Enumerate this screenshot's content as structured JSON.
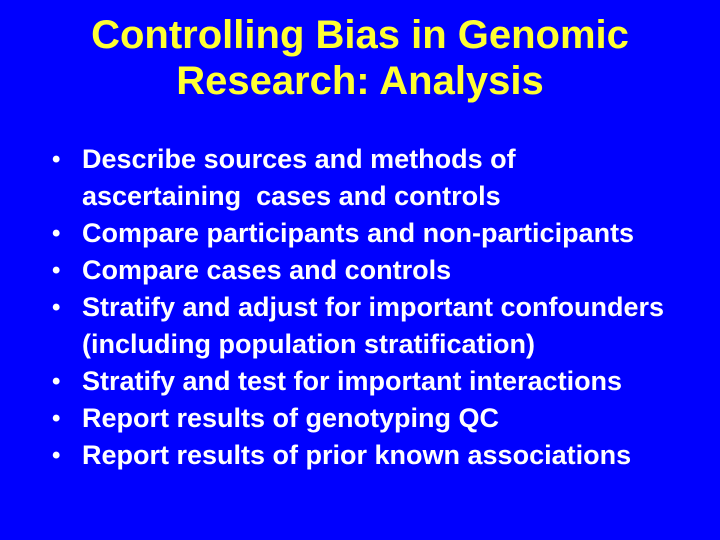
{
  "slide": {
    "title": {
      "lines": [
        "Controlling Bias in Genomic",
        "Research: Analysis"
      ],
      "full_text": "Controlling Bias in Genomic Research: Analysis"
    },
    "bullet_glyph": "•",
    "bullets": [
      {
        "text": "Describe sources and methods of\nascertaining  cases and controls"
      },
      {
        "text": "Compare participants and non-participants"
      },
      {
        "text": "Compare cases and controls"
      },
      {
        "text": "Stratify and adjust for important confounders\n(including population stratification)"
      },
      {
        "text": "Stratify and test for important interactions"
      },
      {
        "text": "Report results of genotyping QC"
      },
      {
        "text": "Report results of prior known associations"
      }
    ],
    "colors": {
      "background": "#0000fe",
      "title_text": "#ffff33",
      "body_text": "#ffffff"
    }
  }
}
